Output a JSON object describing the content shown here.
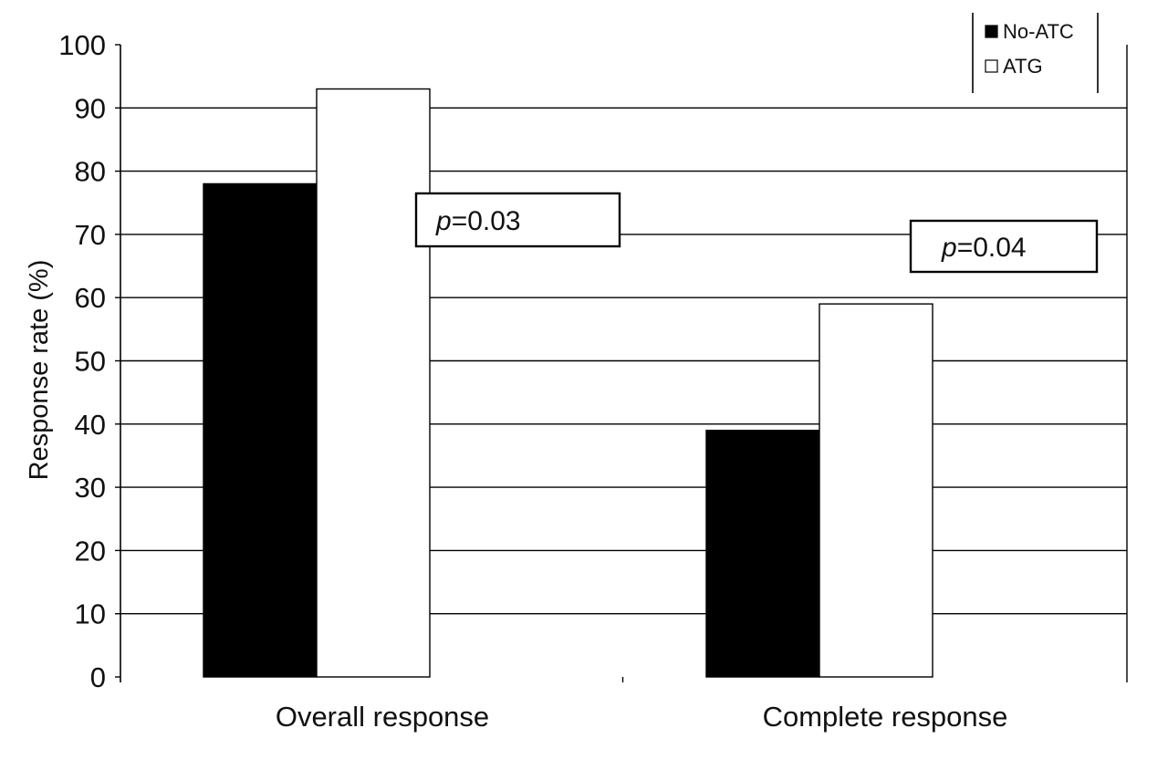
{
  "chart_data": {
    "type": "bar",
    "title": "",
    "xlabel": "",
    "ylabel": "Response rate (%)",
    "ylim": [
      0,
      100
    ],
    "yticks": [
      0,
      10,
      20,
      30,
      40,
      50,
      60,
      70,
      80,
      90,
      100
    ],
    "categories": [
      "Overall response",
      "Complete response"
    ],
    "series": [
      {
        "name": "No-ATC",
        "values": [
          78,
          39
        ],
        "color": "#000000"
      },
      {
        "name": "ATG",
        "values": [
          93,
          59
        ],
        "color": "#ffffff"
      }
    ],
    "grid": true,
    "legend": {
      "placement": "top-right"
    },
    "annotations": [
      {
        "category": "Overall response",
        "prefix": "p",
        "text": "=0.03"
      },
      {
        "category": "Complete response",
        "prefix": "p",
        "text": "=0.04"
      }
    ]
  }
}
